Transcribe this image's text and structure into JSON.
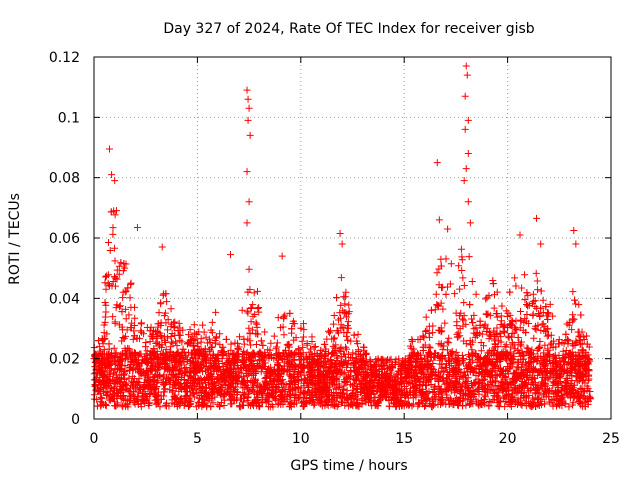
{
  "chart_data": {
    "type": "scatter",
    "title": "Day 327 of 2024, Rate Of TEC Index for receiver gisb",
    "xlabel": "GPS time / hours",
    "ylabel": "ROTI / TECUs",
    "xlim": [
      0,
      25
    ],
    "ylim": [
      0,
      0.12
    ],
    "xticks": [
      0,
      5,
      10,
      15,
      20,
      25
    ],
    "xtick_labels": [
      "0",
      "5",
      "10",
      "15",
      "20",
      "25"
    ],
    "yticks": [
      0,
      0.02,
      0.04,
      0.06,
      0.08,
      0.1,
      0.12
    ],
    "ytick_labels": [
      "0",
      "0.02",
      "0.04",
      "0.06",
      "0.08",
      "0.1",
      "0.12"
    ],
    "grid": true,
    "marker": "+",
    "series": [
      {
        "name": "ROTI",
        "color": "#ff0000",
        "x_range": [
          0,
          24
        ],
        "baseline_band": [
          0.004,
          0.022
        ],
        "notable_points": [
          {
            "x": 0.75,
            "y": 0.0895
          },
          {
            "x": 0.85,
            "y": 0.081
          },
          {
            "x": 1.0,
            "y": 0.079
          },
          {
            "x": 0.95,
            "y": 0.069
          },
          {
            "x": 2.1,
            "y": 0.0635
          },
          {
            "x": 3.3,
            "y": 0.057
          },
          {
            "x": 6.6,
            "y": 0.0545
          },
          {
            "x": 7.4,
            "y": 0.109
          },
          {
            "x": 7.45,
            "y": 0.106
          },
          {
            "x": 7.5,
            "y": 0.103
          },
          {
            "x": 7.45,
            "y": 0.099
          },
          {
            "x": 7.55,
            "y": 0.094
          },
          {
            "x": 7.4,
            "y": 0.082
          },
          {
            "x": 7.5,
            "y": 0.072
          },
          {
            "x": 7.4,
            "y": 0.065
          },
          {
            "x": 9.1,
            "y": 0.054
          },
          {
            "x": 11.9,
            "y": 0.0615
          },
          {
            "x": 12.0,
            "y": 0.058
          },
          {
            "x": 16.6,
            "y": 0.085
          },
          {
            "x": 16.7,
            "y": 0.066
          },
          {
            "x": 17.1,
            "y": 0.063
          },
          {
            "x": 18.0,
            "y": 0.117
          },
          {
            "x": 18.05,
            "y": 0.114
          },
          {
            "x": 17.95,
            "y": 0.107
          },
          {
            "x": 18.1,
            "y": 0.099
          },
          {
            "x": 17.95,
            "y": 0.096
          },
          {
            "x": 18.1,
            "y": 0.088
          },
          {
            "x": 18.0,
            "y": 0.083
          },
          {
            "x": 17.9,
            "y": 0.079
          },
          {
            "x": 18.1,
            "y": 0.072
          },
          {
            "x": 18.2,
            "y": 0.065
          },
          {
            "x": 20.6,
            "y": 0.061
          },
          {
            "x": 21.4,
            "y": 0.0665
          },
          {
            "x": 21.6,
            "y": 0.058
          },
          {
            "x": 23.2,
            "y": 0.0625
          },
          {
            "x": 23.3,
            "y": 0.058
          }
        ]
      }
    ]
  }
}
